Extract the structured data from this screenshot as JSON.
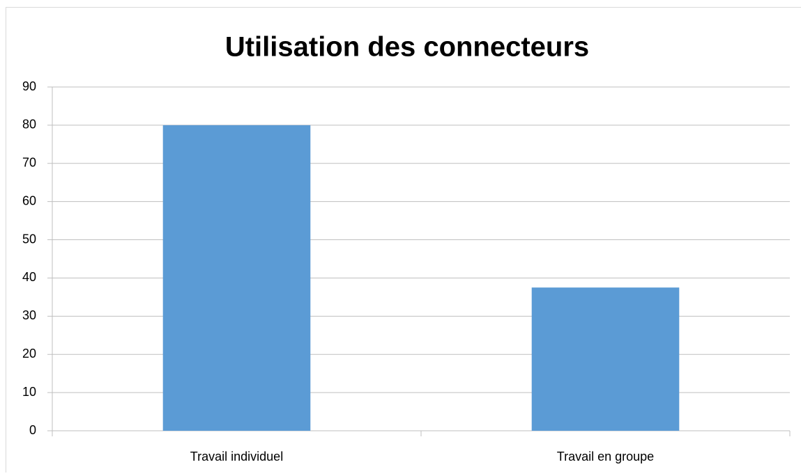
{
  "chart_data": {
    "type": "bar",
    "title": "Utilisation des connecteurs",
    "categories": [
      "Travail individuel",
      "Travail en groupe"
    ],
    "values": [
      80,
      37.5
    ],
    "color": "#5b9bd5",
    "ylim": [
      0,
      90
    ],
    "yticks": [
      0,
      10,
      20,
      30,
      40,
      50,
      60,
      70,
      80,
      90
    ],
    "grid": true
  }
}
